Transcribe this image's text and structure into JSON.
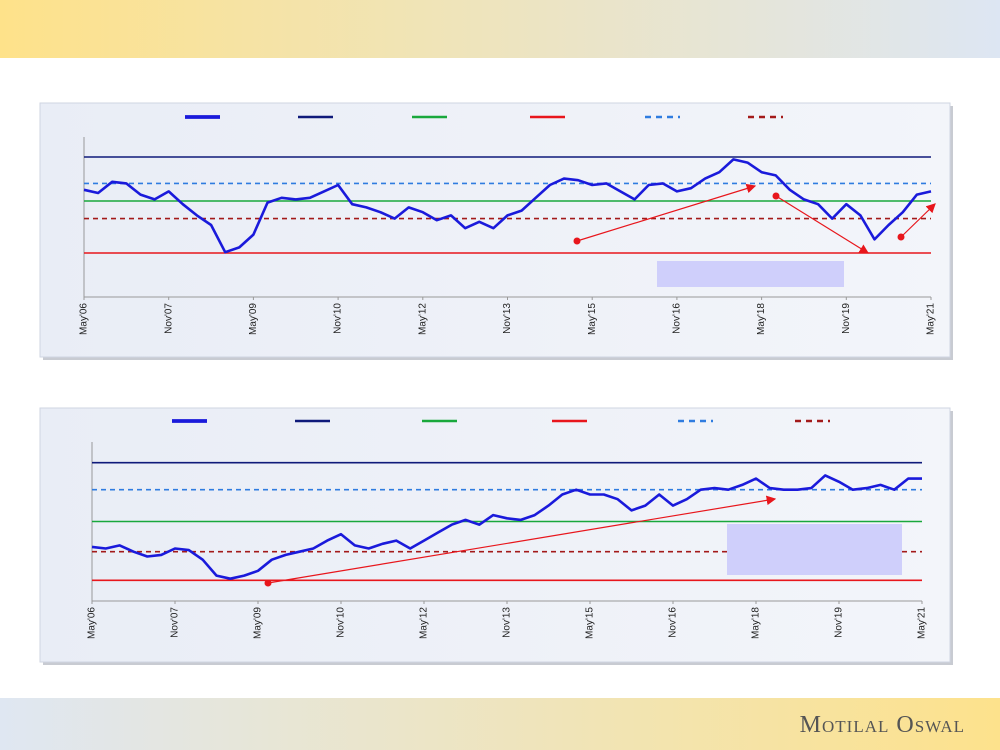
{
  "footer": {
    "brand": "Motilal Oswal"
  },
  "chart_data": [
    {
      "type": "line",
      "x": [
        0,
        3,
        6,
        9,
        12,
        15,
        18,
        21,
        24,
        27,
        30,
        33,
        36,
        39,
        42,
        45,
        48,
        51,
        54,
        57,
        60,
        63,
        66,
        69,
        72,
        75,
        78,
        81,
        84,
        87,
        90,
        93,
        96,
        99,
        102,
        105,
        108,
        111,
        114,
        117,
        120,
        123,
        126,
        129,
        132,
        135,
        138,
        141,
        144,
        147,
        150,
        153,
        156,
        159,
        162,
        165,
        168,
        171,
        174,
        177,
        180
      ],
      "xlim": [
        0,
        180
      ],
      "xticks": [
        {
          "value": 0,
          "label": "May'06"
        },
        {
          "value": 18,
          "label": "Nov'07"
        },
        {
          "value": 36,
          "label": "May'09"
        },
        {
          "value": 54,
          "label": "Nov'10"
        },
        {
          "value": 72,
          "label": "May'12"
        },
        {
          "value": 90,
          "label": "Nov'13"
        },
        {
          "value": 108,
          "label": "May'15"
        },
        {
          "value": 126,
          "label": "Nov'16"
        },
        {
          "value": 144,
          "label": "May'18"
        },
        {
          "value": 162,
          "label": "Nov'19"
        },
        {
          "value": 180,
          "label": "May'21"
        }
      ],
      "ylim": [
        0,
        100
      ],
      "series": [
        {
          "color": "#1a1adb",
          "values": [
            67,
            65,
            72,
            71,
            64,
            61,
            66,
            58,
            51,
            45,
            28,
            31,
            39,
            59,
            62,
            61,
            62,
            66,
            70,
            58,
            56,
            53,
            49,
            56,
            53,
            48,
            51,
            43,
            47,
            43,
            51,
            54,
            62,
            70,
            74,
            73,
            70,
            71,
            66,
            61,
            70,
            71,
            66,
            68,
            74,
            78,
            86,
            84,
            78,
            76,
            67,
            61,
            58,
            49,
            58,
            51,
            36,
            45,
            53,
            64,
            66
          ]
        }
      ],
      "reference_lines": [
        {
          "value": 87.5,
          "color": "#0f1a7a",
          "dash": false
        },
        {
          "value": 60,
          "color": "#19a83c",
          "dash": false
        },
        {
          "value": 27.5,
          "color": "#e8161c",
          "dash": false
        },
        {
          "value": 71,
          "color": "#2f7ce0",
          "dash": true
        },
        {
          "value": 49,
          "color": "#a31a1a",
          "dash": true
        }
      ]
    },
    {
      "type": "line",
      "x": [
        0,
        3,
        6,
        9,
        12,
        15,
        18,
        21,
        24,
        27,
        30,
        33,
        36,
        39,
        42,
        45,
        48,
        51,
        54,
        57,
        60,
        63,
        66,
        69,
        72,
        75,
        78,
        81,
        84,
        87,
        90,
        93,
        96,
        99,
        102,
        105,
        108,
        111,
        114,
        117,
        120,
        123,
        126,
        129,
        132,
        135,
        138,
        141,
        144,
        147,
        150,
        153,
        156,
        159,
        162,
        165,
        168,
        171,
        174,
        177,
        180
      ],
      "xlim": [
        0,
        180
      ],
      "xticks": [
        {
          "value": 0,
          "label": "May'06"
        },
        {
          "value": 18,
          "label": "Nov'07"
        },
        {
          "value": 36,
          "label": "May'09"
        },
        {
          "value": 54,
          "label": "Nov'10"
        },
        {
          "value": 72,
          "label": "May'12"
        },
        {
          "value": 90,
          "label": "Nov'13"
        },
        {
          "value": 108,
          "label": "May'15"
        },
        {
          "value": 126,
          "label": "Nov'16"
        },
        {
          "value": 144,
          "label": "May'18"
        },
        {
          "value": 162,
          "label": "Nov'19"
        },
        {
          "value": 180,
          "label": "May'21"
        }
      ],
      "ylim": [
        0,
        100
      ],
      "series": [
        {
          "color": "#1a1adb",
          "values": [
            34,
            33,
            35,
            31,
            28,
            29,
            33,
            32,
            26,
            16,
            14,
            16,
            19,
            26,
            29,
            31,
            33,
            38,
            42,
            35,
            33,
            36,
            38,
            33,
            38,
            43,
            48,
            51,
            48,
            54,
            52,
            51,
            54,
            60,
            67,
            70,
            67,
            67,
            64,
            57,
            60,
            67,
            60,
            64,
            70,
            71,
            70,
            73,
            77,
            71,
            70,
            70,
            71,
            79,
            75,
            70,
            71,
            73,
            70,
            77,
            77
          ]
        }
      ],
      "reference_lines": [
        {
          "value": 87,
          "color": "#0f1a7a",
          "dash": false
        },
        {
          "value": 50,
          "color": "#19a83c",
          "dash": false
        },
        {
          "value": 13,
          "color": "#e8161c",
          "dash": false
        },
        {
          "value": 70,
          "color": "#2f7ce0",
          "dash": true
        },
        {
          "value": 31,
          "color": "#a31a1a",
          "dash": true
        }
      ]
    }
  ]
}
